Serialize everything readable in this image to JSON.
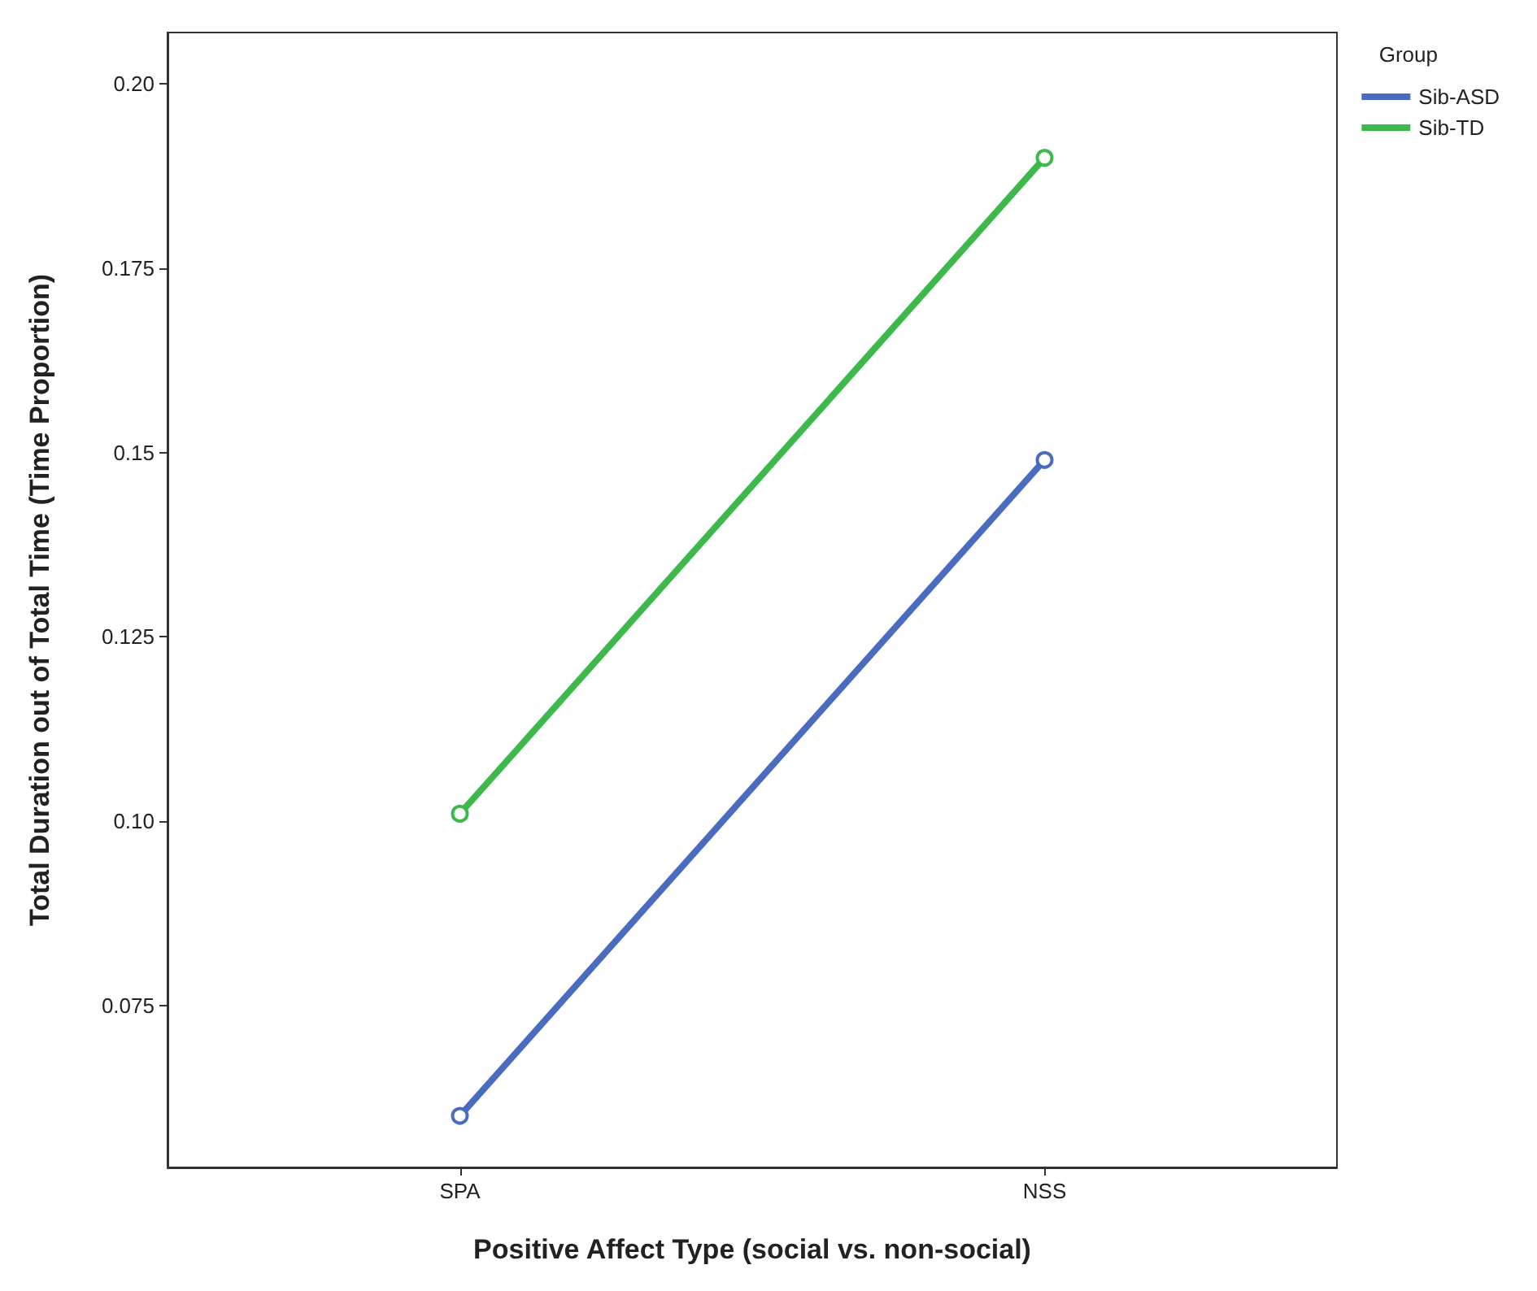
{
  "chart_data": {
    "type": "line",
    "xlabel": "Positive Affect Type (social vs. non-social)",
    "ylabel": "Total Duration out of Total Time (Time Proportion)",
    "legend_title": "Group",
    "categories": [
      "SPA",
      "NSS"
    ],
    "series": [
      {
        "name": "Sib-ASD",
        "color": "#4a6bbf",
        "values": [
          0.06,
          0.149
        ]
      },
      {
        "name": "Sib-TD",
        "color": "#3cb94a",
        "values": [
          0.101,
          0.19
        ]
      }
    ],
    "ylim": [
      0.053,
      0.207
    ],
    "yticks": [
      0.075,
      {
        "value": 0.1,
        "label": "0.10"
      },
      0.125,
      0.15,
      0.175,
      {
        "value": 0.2,
        "label": "0.20"
      }
    ],
    "grid": false,
    "legend": "top right",
    "marker": "circle",
    "line_style": "solid"
  }
}
